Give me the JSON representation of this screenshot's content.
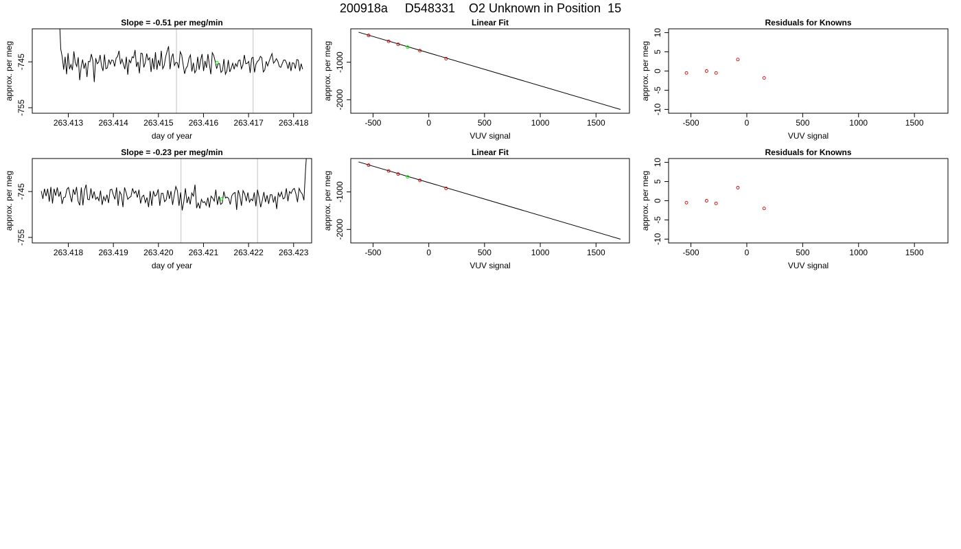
{
  "header": {
    "run_id": "200918a",
    "sample_id": "D548331",
    "description": "O2 Unknown in Position  15"
  },
  "colors": {
    "line": "#000000",
    "frame": "#000000",
    "cycle_marker": "#cccccc",
    "known_point": "#cc0000",
    "unknown_point": "#00ee00"
  },
  "chart_data": [
    {
      "id": "trace-1",
      "type": "line",
      "title": "Slope =  -0.51  per meg/min",
      "xlabel": "day of year",
      "ylabel": "approx. per meg",
      "xlim": [
        263.4122,
        263.4184
      ],
      "ylim": [
        -756.2,
        -737.8
      ],
      "xticks": [
        263.413,
        263.414,
        263.415,
        263.416,
        263.417,
        263.418
      ],
      "xtick_labels": [
        "263.413",
        "263.414",
        "263.415",
        "263.416",
        "263.417",
        "263.418"
      ],
      "yticks": [
        -745,
        -755
      ],
      "ytick_labels": [
        "-745",
        "-755"
      ],
      "cycle_markers_x": [
        263.4154,
        263.4171
      ],
      "highlight_point": {
        "x": 263.4163,
        "y": -745.2
      },
      "series": [
        {
          "start_x": 263.4128,
          "end_x": 263.4182,
          "values": [
            -735.0,
            -742.2,
            -743.9,
            -746.7,
            -743.9,
            -747.7,
            -743.1,
            -746.6,
            -745.6,
            -746.8,
            -742.7,
            -745.2,
            -746.0,
            -744.0,
            -749.0,
            -746.1,
            -744.5,
            -746.5,
            -745.2,
            -748.3,
            -744.9,
            -745.0,
            -743.3,
            -744.7,
            -749.4,
            -744.2,
            -745.4,
            -745.1,
            -743.5,
            -745.9,
            -747.0,
            -743.4,
            -746.5,
            -746.3,
            -744.5,
            -745.5,
            -744.6,
            -744.7,
            -746.0,
            -744.2,
            -743.8,
            -742.6,
            -745.5,
            -744.4,
            -745.5,
            -746.6,
            -743.9,
            -747.8,
            -744.6,
            -745.2,
            -743.9,
            -744.1,
            -742.4,
            -746.1,
            -745.0,
            -747.5,
            -743.1,
            -743.2,
            -746.2,
            -745.2,
            -743.2,
            -744.6,
            -744.1,
            -747.2,
            -744.2,
            -746.6,
            -742.9,
            -746.7,
            -744.6,
            -745.9,
            -742.6,
            -746.5,
            -745.8,
            -743.9,
            -742.7,
            -741.6,
            -746.6,
            -744.1,
            -743.2,
            -745.8,
            -745.1,
            -745.2,
            -746.4,
            -742.8,
            -743.5,
            -745.6,
            -747.6,
            -746.4,
            -745.9,
            -744.2,
            -743.5,
            -747.1,
            -745.2,
            -747.4,
            -746.8,
            -743.9,
            -746.7,
            -744.6,
            -743.3,
            -747.0,
            -744.8,
            -746.3,
            -743.3,
            -745.6,
            -747.7,
            -743.0,
            -743.6,
            -744.9,
            -746.5,
            -745.4,
            -745.4,
            -747.3,
            -746.9,
            -744.4,
            -747.7,
            -747.0,
            -744.6,
            -747.2,
            -746.4,
            -745.3,
            -746.6,
            -745.4,
            -746.0,
            -744.7,
            -744.6,
            -746.5,
            -745.7,
            -743.5,
            -745.4,
            -745.3,
            -744.9,
            -747.4,
            -744.2,
            -744.0,
            -747.3,
            -745.5,
            -744.9,
            -744.6,
            -743.8,
            -744.1,
            -747.2,
            -746.8,
            -744.9,
            -745.9,
            -744.9,
            -744.0,
            -743.2,
            -745.3,
            -744.9,
            -744.3,
            -744.9,
            -746.0,
            -746.2,
            -745.4,
            -744.6,
            -744.6,
            -745.3,
            -746.5,
            -745.0,
            -747.0,
            -745.2,
            -745.3,
            -746.5,
            -744.5,
            -744.6,
            -747.0,
            -745.4,
            -746.6
          ]
        }
      ]
    },
    {
      "id": "fit-1",
      "type": "scatter",
      "title": "Linear Fit",
      "xlabel": "VUV signal",
      "ylabel": "approx. per meg",
      "xlim": [
        -700,
        1800
      ],
      "ylim": [
        -2360,
        -110
      ],
      "xticks": [
        -500,
        0,
        500,
        1000,
        1500
      ],
      "xtick_labels": [
        "-500",
        "0",
        "500",
        "1000",
        "1500"
      ],
      "yticks": [
        -1000,
        -2000
      ],
      "ytick_labels": [
        "-1000",
        "-2000"
      ],
      "fit_line": {
        "x": [
          -630,
          1720
        ],
        "y": [
          -200,
          -2260
        ]
      },
      "known_points": [
        {
          "x": -540,
          "y": -286
        },
        {
          "x": -360,
          "y": -442
        },
        {
          "x": -275,
          "y": -524
        },
        {
          "x": -80,
          "y": -693
        },
        {
          "x": 155,
          "y": -905
        }
      ],
      "unknown_points": [
        {
          "x": -190,
          "y": -599
        }
      ]
    },
    {
      "id": "resid-1",
      "type": "scatter",
      "title": "Residuals for Knowns",
      "xlabel": "VUV signal",
      "ylabel": "approx. per meg",
      "xlim": [
        -700,
        1800
      ],
      "ylim": [
        -11,
        11
      ],
      "xticks": [
        -500,
        0,
        500,
        1000,
        1500
      ],
      "xtick_labels": [
        "-500",
        "0",
        "500",
        "1000",
        "1500"
      ],
      "yticks": [
        10,
        5,
        0,
        -5,
        -10
      ],
      "ytick_labels": [
        "10",
        "5",
        "0",
        "-5",
        "-10"
      ],
      "known_points": [
        {
          "x": -540,
          "y": -0.5
        },
        {
          "x": -360,
          "y": 0.0
        },
        {
          "x": -275,
          "y": -0.5
        },
        {
          "x": -80,
          "y": 3.0
        },
        {
          "x": 155,
          "y": -1.8
        }
      ]
    },
    {
      "id": "trace-2",
      "type": "line",
      "title": "Slope =  -0.23  per meg/min",
      "xlabel": "day of year",
      "ylabel": "approx. per meg",
      "xlim": [
        263.4172,
        263.4234
      ],
      "ylim": [
        -756.2,
        -737.8
      ],
      "xticks": [
        263.418,
        263.419,
        263.42,
        263.421,
        263.422,
        263.423
      ],
      "xtick_labels": [
        "263.418",
        "263.419",
        "263.420",
        "263.421",
        "263.422",
        "263.423"
      ],
      "yticks": [
        -745,
        -755
      ],
      "ytick_labels": [
        "-745",
        "-755"
      ],
      "cycle_markers_x": [
        263.4205,
        263.4222
      ],
      "highlight_point": {
        "x": 263.4214,
        "y": -746.6
      },
      "series": [
        {
          "start_x": 263.4174,
          "end_x": 263.4233,
          "values": [
            -744.9,
            -746.6,
            -744.4,
            -746.0,
            -744.4,
            -747.2,
            -744.0,
            -747.6,
            -744.4,
            -745.9,
            -744.1,
            -746.1,
            -745.0,
            -747.7,
            -746.3,
            -746.2,
            -744.5,
            -744.1,
            -745.8,
            -747.3,
            -744.5,
            -745.7,
            -744.0,
            -747.1,
            -748.0,
            -744.1,
            -748.0,
            -744.7,
            -743.5,
            -746.7,
            -746.8,
            -744.3,
            -746.5,
            -745.0,
            -746.7,
            -746.2,
            -747.0,
            -744.8,
            -747.9,
            -746.1,
            -747.0,
            -745.7,
            -747.5,
            -744.6,
            -744.5,
            -745.7,
            -746.7,
            -744.1,
            -748.1,
            -745.0,
            -745.7,
            -748.4,
            -744.1,
            -745.2,
            -746.7,
            -746.3,
            -746.1,
            -744.3,
            -745.4,
            -744.9,
            -746.3,
            -744.6,
            -747.6,
            -746.1,
            -745.8,
            -747.4,
            -746.3,
            -748.4,
            -744.9,
            -748.1,
            -744.9,
            -746.0,
            -745.7,
            -744.5,
            -748.1,
            -745.4,
            -745.4,
            -747.2,
            -746.8,
            -744.7,
            -746.6,
            -744.9,
            -747.9,
            -745.8,
            -743.9,
            -744.8,
            -748.1,
            -745.2,
            -749.1,
            -747.2,
            -744.3,
            -747.5,
            -746.1,
            -747.8,
            -745.3,
            -746.0,
            -743.5,
            -748.6,
            -747.5,
            -748.7,
            -746.7,
            -747.4,
            -747.2,
            -748.0,
            -746.3,
            -748.5,
            -746.0,
            -746.4,
            -747.1,
            -744.6,
            -747.9,
            -746.0,
            -747.8,
            -747.5,
            -745.0,
            -746.4,
            -746.2,
            -746.5,
            -747.8,
            -745.9,
            -745.4,
            -745.2,
            -749.0,
            -744.7,
            -745.9,
            -748.1,
            -744.8,
            -745.5,
            -747.1,
            -745.2,
            -747.3,
            -746.6,
            -747.0,
            -745.2,
            -748.2,
            -744.6,
            -746.2,
            -748.4,
            -746.9,
            -745.1,
            -747.3,
            -745.8,
            -747.7,
            -745.7,
            -745.7,
            -747.4,
            -746.0,
            -748.8,
            -745.3,
            -746.1,
            -745.1,
            -746.6,
            -746.4,
            -744.3,
            -747.1,
            -745.0,
            -745.4,
            -744.6,
            -744.3,
            -745.5,
            -747.3,
            -744.3,
            -745.1,
            -745.6,
            -746.9,
            -740.3,
            -735.0
          ]
        }
      ]
    },
    {
      "id": "fit-2",
      "type": "scatter",
      "title": "Linear Fit",
      "xlabel": "VUV signal",
      "ylabel": "approx. per meg",
      "xlim": [
        -700,
        1800
      ],
      "ylim": [
        -2360,
        -110
      ],
      "xticks": [
        -500,
        0,
        500,
        1000,
        1500
      ],
      "xtick_labels": [
        "-500",
        "0",
        "500",
        "1000",
        "1500"
      ],
      "yticks": [
        -1000,
        -2000
      ],
      "ytick_labels": [
        "-1000",
        "-2000"
      ],
      "fit_line": {
        "x": [
          -630,
          1720
        ],
        "y": [
          -200,
          -2260
        ]
      },
      "known_points": [
        {
          "x": -540,
          "y": -286
        },
        {
          "x": -360,
          "y": -442
        },
        {
          "x": -275,
          "y": -524
        },
        {
          "x": -80,
          "y": -693
        },
        {
          "x": 155,
          "y": -905
        }
      ],
      "unknown_points": [
        {
          "x": -190,
          "y": -599
        }
      ]
    },
    {
      "id": "resid-2",
      "type": "scatter",
      "title": "Residuals for Knowns",
      "xlabel": "VUV signal",
      "ylabel": "approx. per meg",
      "xlim": [
        -700,
        1800
      ],
      "ylim": [
        -11,
        11
      ],
      "xticks": [
        -500,
        0,
        500,
        1000,
        1500
      ],
      "xtick_labels": [
        "-500",
        "0",
        "500",
        "1000",
        "1500"
      ],
      "yticks": [
        10,
        5,
        0,
        -5,
        -10
      ],
      "ytick_labels": [
        "10",
        "5",
        "0",
        "-5",
        "-10"
      ],
      "known_points": [
        {
          "x": -540,
          "y": -0.5
        },
        {
          "x": -360,
          "y": 0.0
        },
        {
          "x": -275,
          "y": -0.7
        },
        {
          "x": -80,
          "y": 3.4
        },
        {
          "x": 155,
          "y": -2.0
        }
      ]
    }
  ]
}
